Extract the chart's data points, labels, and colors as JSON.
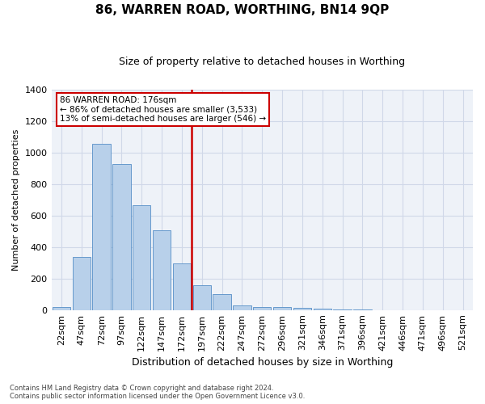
{
  "title": "86, WARREN ROAD, WORTHING, BN14 9QP",
  "subtitle": "Size of property relative to detached houses in Worthing",
  "xlabel": "Distribution of detached houses by size in Worthing",
  "ylabel": "Number of detached properties",
  "footnote1": "Contains HM Land Registry data © Crown copyright and database right 2024.",
  "footnote2": "Contains public sector information licensed under the Open Government Licence v3.0.",
  "bar_color": "#b8d0ea",
  "bar_edge_color": "#6699cc",
  "categories": [
    "22sqm",
    "47sqm",
    "72sqm",
    "97sqm",
    "122sqm",
    "147sqm",
    "172sqm",
    "197sqm",
    "222sqm",
    "247sqm",
    "272sqm",
    "296sqm",
    "321sqm",
    "346sqm",
    "371sqm",
    "396sqm",
    "421sqm",
    "446sqm",
    "471sqm",
    "496sqm",
    "521sqm"
  ],
  "values": [
    18,
    335,
    1055,
    925,
    665,
    505,
    295,
    155,
    100,
    30,
    18,
    18,
    15,
    10,
    5,
    3,
    0,
    0,
    0,
    0,
    0
  ],
  "vline_x": 6.5,
  "vline_color": "#cc0000",
  "annotation_text": "86 WARREN ROAD: 176sqm\n← 86% of detached houses are smaller (3,533)\n13% of semi-detached houses are larger (546) →",
  "annotation_box_color": "#ffffff",
  "annotation_box_edge_color": "#cc0000",
  "ylim": [
    0,
    1400
  ],
  "yticks": [
    0,
    200,
    400,
    600,
    800,
    1000,
    1200,
    1400
  ],
  "grid_color": "#d0d8e8",
  "bg_color": "#eef2f8",
  "title_fontsize": 11,
  "subtitle_fontsize": 9,
  "ylabel_fontsize": 8,
  "xlabel_fontsize": 9,
  "tick_fontsize": 8,
  "annot_fontsize": 7.5,
  "footnote_fontsize": 6
}
